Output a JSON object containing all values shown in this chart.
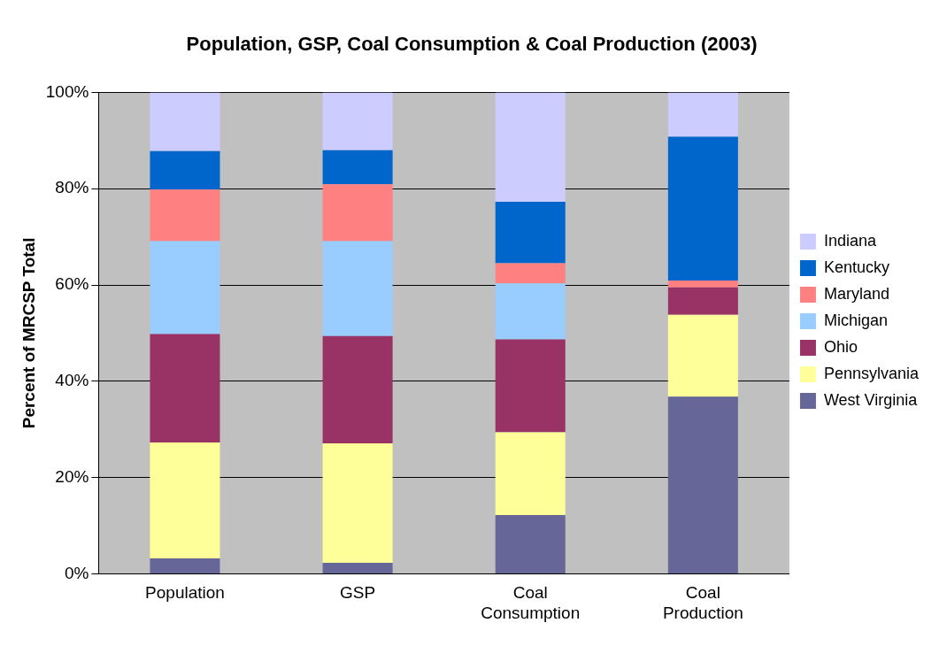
{
  "chart_data": {
    "type": "bar",
    "title": "Population, GSP, Coal Consumption & Coal Production (2003)",
    "ylabel": "Percent of MRCSP Total",
    "categories": [
      "Population",
      "GSP",
      "Coal Consumption",
      "Coal Production"
    ],
    "stacked": true,
    "ylim": [
      0,
      100
    ],
    "yticks": [
      {
        "value": 0,
        "label": "0%"
      },
      {
        "value": 20,
        "label": "20%"
      },
      {
        "value": 40,
        "label": "40%"
      },
      {
        "value": 60,
        "label": "60%"
      },
      {
        "value": 80,
        "label": "80%"
      },
      {
        "value": 100,
        "label": "100%"
      }
    ],
    "grid": "y",
    "legend": "right",
    "series": [
      {
        "name": "West Virginia",
        "color": "#666699",
        "values": [
          3.2,
          2.3,
          12.2,
          36.8
        ]
      },
      {
        "name": "Pennsylvania",
        "color": "#ffff99",
        "values": [
          24.1,
          24.8,
          17.2,
          17.0
        ]
      },
      {
        "name": "Ohio",
        "color": "#993366",
        "values": [
          22.5,
          22.3,
          19.3,
          5.7
        ]
      },
      {
        "name": "Michigan",
        "color": "#99ccff",
        "values": [
          19.3,
          19.7,
          11.6,
          0
        ]
      },
      {
        "name": "Maryland",
        "color": "#ff8080",
        "values": [
          10.7,
          11.8,
          4.2,
          1.4
        ]
      },
      {
        "name": "Kentucky",
        "color": "#0066cc",
        "values": [
          8.0,
          7.1,
          12.8,
          29.9
        ]
      },
      {
        "name": "Indiana",
        "color": "#ccccff",
        "values": [
          12.2,
          12.0,
          22.7,
          9.2
        ]
      }
    ]
  }
}
